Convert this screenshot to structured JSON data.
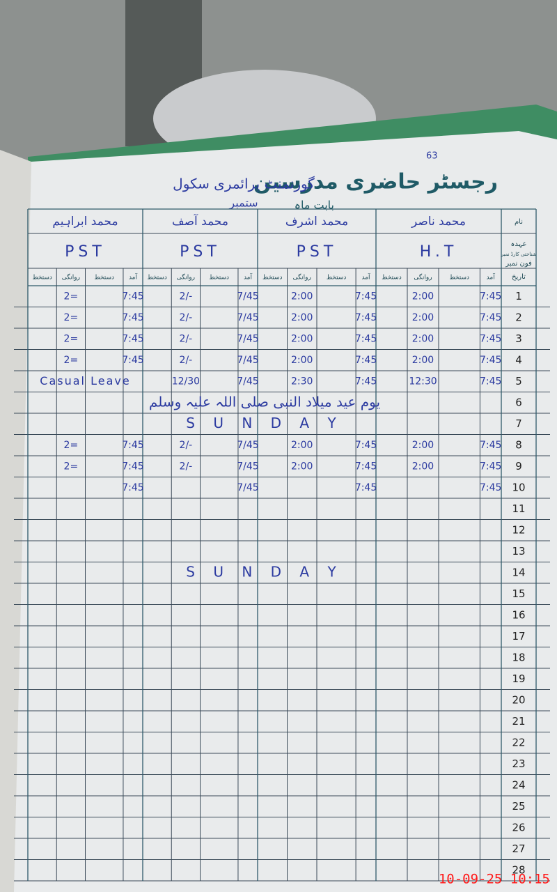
{
  "header": {
    "page_number": "63",
    "title": "رجسٹر حاضری مدرسین",
    "school": "گورنمنٹ پرائمری سکول",
    "month_label": "بابت ماہ",
    "month": "ستمبر"
  },
  "row_labels": [
    "نام",
    "عہدہ",
    "شناختی کارڈ نمبر",
    "فون نمبر",
    "تاریخ"
  ],
  "column_headers": [
    "آمد",
    "دستخط",
    "روانگی",
    "دستخط"
  ],
  "teachers": [
    {
      "name": "محمد ناصر",
      "designation": "H.T"
    },
    {
      "name": "محمد اشرف",
      "designation": "PST"
    },
    {
      "name": "محمد آصف",
      "designation": "PST"
    },
    {
      "name": "محمد ابراہیم",
      "designation": "PST",
      "leave": {
        "date": 5,
        "text": "Casual Leave"
      }
    }
  ],
  "dates": [
    1,
    2,
    3,
    4,
    5,
    6,
    7,
    8,
    9,
    10,
    11,
    12,
    13,
    14,
    15,
    16,
    17,
    18,
    19,
    20,
    21,
    22,
    23,
    24,
    25,
    26,
    27,
    28
  ],
  "attendance": [
    {
      "date": 1,
      "times": [
        [
          "7:45",
          "2:00"
        ],
        [
          "7:45",
          "2:00"
        ],
        [
          "7/45",
          "2/-"
        ],
        [
          "7:45",
          "2="
        ]
      ]
    },
    {
      "date": 2,
      "times": [
        [
          "7:45",
          "2:00"
        ],
        [
          "7:45",
          "2:00"
        ],
        [
          "7/45",
          "2/-"
        ],
        [
          "7:45",
          "2="
        ]
      ]
    },
    {
      "date": 3,
      "times": [
        [
          "7:45",
          "2:00"
        ],
        [
          "7:45",
          "2:00"
        ],
        [
          "7/45",
          "2/-"
        ],
        [
          "7:45",
          "2="
        ]
      ]
    },
    {
      "date": 4,
      "times": [
        [
          "7:45",
          "2:00"
        ],
        [
          "7:45",
          "2:00"
        ],
        [
          "7/45",
          "2/-"
        ],
        [
          "7:45",
          "2="
        ]
      ]
    },
    {
      "date": 5,
      "times": [
        [
          "7:45",
          "12:30"
        ],
        [
          "7:45",
          "2:30"
        ],
        [
          "7/45",
          "12/30"
        ],
        [
          null,
          null
        ]
      ]
    },
    {
      "date": 8,
      "times": [
        [
          "7:45",
          "2:00"
        ],
        [
          "7:45",
          "2:00"
        ],
        [
          "7/45",
          "2/-"
        ],
        [
          "7:45",
          "2="
        ]
      ]
    },
    {
      "date": 9,
      "times": [
        [
          "7:45",
          "2:00"
        ],
        [
          "7:45",
          "2:00"
        ],
        [
          "7/45",
          "2/-"
        ],
        [
          "7:45",
          "2="
        ]
      ]
    },
    {
      "date": 10,
      "times": [
        [
          "7:45",
          null
        ],
        [
          "7:45",
          null
        ],
        [
          "7/45",
          null
        ],
        [
          "7:45",
          null
        ]
      ]
    }
  ],
  "day_notes": [
    {
      "date": 6,
      "text": "یوم عید میلاد النبی صلی اللہ علیہ وسلم"
    },
    {
      "date": 7,
      "text": "S U N D A Y"
    },
    {
      "date": 14,
      "text": "S U N D A Y"
    }
  ],
  "timestamp": "10-09-25 10:15"
}
